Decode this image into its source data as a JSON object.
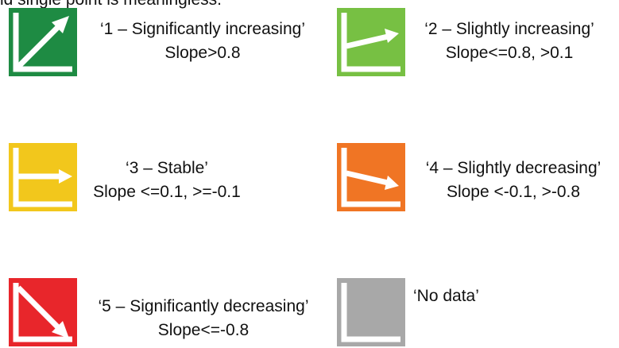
{
  "header_fragment": "ld single point is meaningless.",
  "legend": [
    {
      "label": "‘1 – Significantly increasing’",
      "rule": "Slope>0.8",
      "color": "#1e8b43",
      "icon": "significantly-increasing-icon"
    },
    {
      "label": "‘2 – Slightly increasing’",
      "rule": "Slope<=0.8, >0.1",
      "color": "#77c043",
      "icon": "slightly-increasing-icon"
    },
    {
      "label": "‘3 – Stable’",
      "rule": "Slope <=0.1, >=-0.1",
      "color": "#f2c71c",
      "icon": "stable-icon"
    },
    {
      "label": "‘4 – Slightly decreasing’",
      "rule": "Slope <-0.1, >-0.8",
      "color": "#f07524",
      "icon": "slightly-decreasing-icon"
    },
    {
      "label": "‘5 – Significantly decreasing’",
      "rule": "Slope<=-0.8",
      "color": "#e8262b",
      "icon": "significantly-decreasing-icon"
    },
    {
      "label": "‘No data’",
      "rule": "",
      "color": "#a8a8a8",
      "icon": "no-data-icon"
    }
  ]
}
